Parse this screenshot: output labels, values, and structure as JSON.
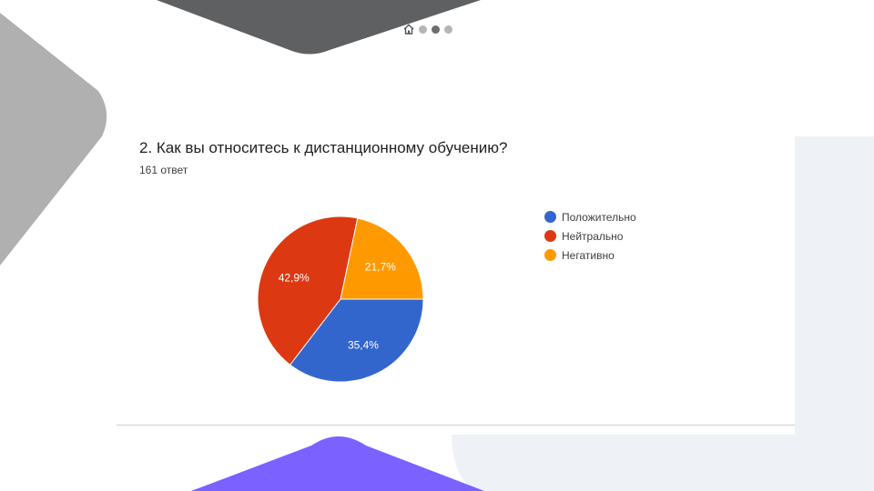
{
  "slide": {
    "nav_dots": [
      {
        "active": false
      },
      {
        "active": true
      },
      {
        "active": false
      }
    ]
  },
  "question": {
    "title": "2. Как вы относитесь к дистанционному обучению?",
    "responses": "161 ответ"
  },
  "chart_data": {
    "type": "pie",
    "title": "2. Как вы относитесь к дистанционному обучению?",
    "subtitle": "161 ответ",
    "slices": [
      {
        "label": "Положительно",
        "value": 35.4,
        "value_label": "35,4%",
        "color": "#3366cc"
      },
      {
        "label": "Нейтрально",
        "value": 42.9,
        "value_label": "42,9%",
        "color": "#dc3912"
      },
      {
        "label": "Негативно",
        "value": 21.7,
        "value_label": "21,7%",
        "color": "#ff9900"
      }
    ],
    "start": "3 o'clock, counterclockwise order: Негативно, Нейтрально, Положительно",
    "legend_position": "right"
  },
  "colors": {
    "deco_dark": "#5f6062",
    "deco_gray": "#b0b0b0",
    "deco_purple": "#7b61ff",
    "deco_light": "#eef2f7"
  }
}
